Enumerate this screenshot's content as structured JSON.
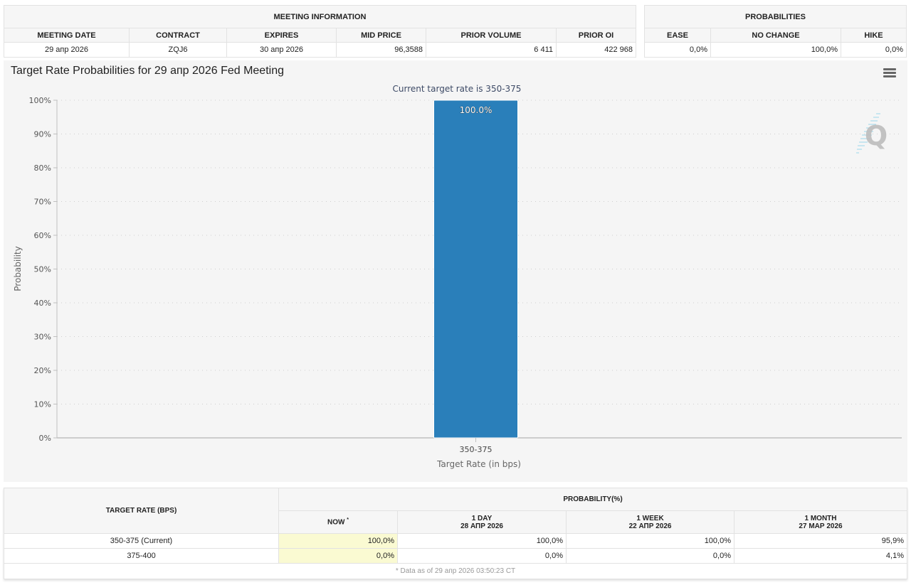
{
  "meeting_info": {
    "group_label": "MEETING INFORMATION",
    "headers": [
      "MEETING DATE",
      "CONTRACT",
      "EXPIRES",
      "MID PRICE",
      "PRIOR VOLUME",
      "PRIOR OI"
    ],
    "values": [
      "29 апр 2026",
      "ZQJ6",
      "30 апр 2026",
      "96,3588",
      "6 411",
      "422 968"
    ]
  },
  "probabilities": {
    "group_label": "PROBABILITIES",
    "headers": [
      "EASE",
      "NO CHANGE",
      "HIKE"
    ],
    "values": [
      "0,0%",
      "100,0%",
      "0,0%"
    ]
  },
  "chart_panel": {
    "menu_icon": "hamburger-menu-icon",
    "watermark_icon": "quikstrike-q-logo-icon"
  },
  "chart_data": {
    "type": "bar",
    "title": "Target Rate Probabilities for 29 апр 2026 Fed Meeting",
    "subtitle": "Current target rate is 350-375",
    "categories": [
      "350-375"
    ],
    "values": [
      100.0
    ],
    "data_labels": [
      "100.0%"
    ],
    "xlabel": "Target Rate (in bps)",
    "ylabel": "Probability",
    "ylim": [
      0,
      100
    ],
    "yticks": [
      0,
      10,
      20,
      30,
      40,
      50,
      60,
      70,
      80,
      90,
      100
    ],
    "ytick_labels": [
      "0%",
      "10%",
      "20%",
      "30%",
      "40%",
      "50%",
      "60%",
      "70%",
      "80%",
      "90%",
      "100%"
    ],
    "grid": true,
    "bar_color": "#2a7fba"
  },
  "rates_table": {
    "col_target": "TARGET RATE (BPS)",
    "col_group": "PROBABILITY(%)",
    "columns": [
      {
        "line1": "NOW",
        "line2": "",
        "mark": "*"
      },
      {
        "line1": "1 DAY",
        "line2": "28 АПР 2026",
        "mark": ""
      },
      {
        "line1": "1 WEEK",
        "line2": "22 АПР 2026",
        "mark": ""
      },
      {
        "line1": "1 MONTH",
        "line2": "27 МАР 2026",
        "mark": ""
      }
    ],
    "rows": [
      {
        "rate": "350-375 (Current)",
        "values": [
          "100,0%",
          "100,0%",
          "100,0%",
          "95,9%"
        ]
      },
      {
        "rate": "375-400",
        "values": [
          "0,0%",
          "0,0%",
          "0,0%",
          "4,1%"
        ]
      }
    ],
    "footnote": "* Data as of 29 апр 2026 03:50:23 CT"
  }
}
